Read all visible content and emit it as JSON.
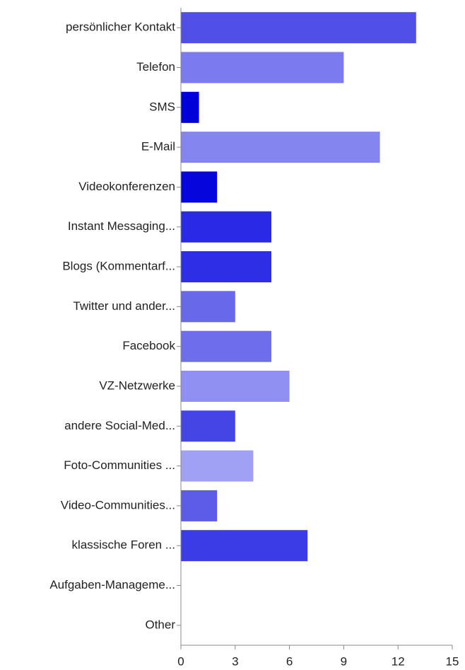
{
  "chart_data": {
    "type": "bar",
    "orientation": "horizontal",
    "categories": [
      "persönlicher Kontakt",
      "Telefon",
      "SMS",
      "E-Mail",
      "Videokonferenzen",
      "Instant Messaging...",
      "Blogs (Kommentarf...",
      "Twitter und ander...",
      "Facebook",
      "VZ-Netzwerke",
      "andere Social-Med...",
      "Foto-Communities ...",
      "Video-Communities...",
      "klassische Foren ...",
      "Aufgaben-Manageme...",
      "Other"
    ],
    "values": [
      13,
      9,
      1,
      11,
      2,
      5,
      5,
      3,
      5,
      6,
      3,
      4,
      2,
      7,
      0,
      0
    ],
    "colors": [
      "#5050e8",
      "#7b7bef",
      "#0000d8",
      "#8585f0",
      "#0505dc",
      "#2a2ae6",
      "#2e2ee6",
      "#6868ea",
      "#6e6eec",
      "#9090f2",
      "#4545e6",
      "#a0a0f4",
      "#5c5ce8",
      "#3c3ce6",
      "#3c3ce6",
      "#3c3ce6"
    ],
    "xlim": [
      0,
      15
    ],
    "xticks": [
      0,
      3,
      6,
      9,
      12,
      15
    ],
    "grid": false
  }
}
